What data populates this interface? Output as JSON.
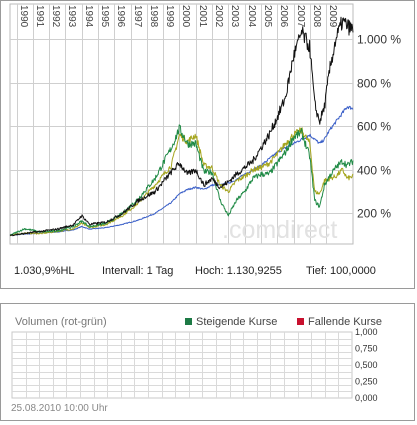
{
  "chart_data": [
    {
      "type": "line",
      "title": "",
      "x_ticks": [
        "1990",
        "1991",
        "1992",
        "1993",
        "1994",
        "1995",
        "1996",
        "1997",
        "1998",
        "1999",
        "2000",
        "2001",
        "2002",
        "2003",
        "2004",
        "2005",
        "2006",
        "2007",
        "2008",
        "2009"
      ],
      "y_ticks": [
        200,
        400,
        600,
        800,
        1000
      ],
      "y_tick_labels": [
        "200 %",
        "400 %",
        "600 %",
        "800 %",
        "1.000 %"
      ],
      "ylim": [
        60,
        1160
      ],
      "xlim": [
        1989.6,
        2010.65
      ],
      "grid": true,
      "watermark": ".comdirect",
      "series_colors": [
        "#111111",
        "#3a5fc8",
        "#a5a51e",
        "#1f8a45"
      ],
      "series": [
        {
          "x": [
            1989.6,
            1990.5,
            1991.5,
            1992.5,
            1993.5,
            1994,
            1994.5,
            1995.5,
            1996.5,
            1997.5,
            1998.5,
            1999.5,
            2000,
            2000.5,
            2001,
            2001.5,
            2002,
            2002.5,
            2003,
            2003.5,
            2004,
            2004.5,
            2005,
            2005.5,
            2006,
            2006.5,
            2007,
            2007.5,
            2008,
            2008.3,
            2008.6,
            2008.9,
            2009.2,
            2009.6,
            2010,
            2010.3,
            2010.65
          ],
          "y": [
            100,
            108,
            118,
            128,
            148,
            190,
            150,
            160,
            200,
            260,
            300,
            390,
            430,
            380,
            400,
            330,
            360,
            320,
            345,
            380,
            410,
            440,
            500,
            560,
            640,
            730,
            920,
            1030,
            960,
            700,
            620,
            690,
            850,
            1000,
            1080,
            1060,
            1040
          ]
        },
        {
          "x": [
            1989.6,
            1990.5,
            1991.5,
            1992.5,
            1993.5,
            1994,
            1994.5,
            1995.5,
            1996.5,
            1997.5,
            1998.5,
            1999.5,
            2000,
            2000.5,
            2001,
            2001.5,
            2002,
            2002.5,
            2003,
            2003.5,
            2004,
            2004.5,
            2005,
            2005.5,
            2006,
            2006.5,
            2007,
            2007.5,
            2008,
            2008.3,
            2008.6,
            2008.9,
            2009.2,
            2009.6,
            2010,
            2010.3,
            2010.65
          ],
          "y": [
            100,
            105,
            110,
            115,
            125,
            140,
            128,
            135,
            150,
            170,
            200,
            250,
            290,
            310,
            320,
            310,
            330,
            330,
            340,
            355,
            380,
            400,
            420,
            450,
            480,
            500,
            520,
            540,
            560,
            540,
            520,
            540,
            580,
            620,
            660,
            690,
            680
          ]
        },
        {
          "x": [
            1989.6,
            1990.5,
            1991.5,
            1992.5,
            1993.5,
            1994,
            1994.5,
            1995.5,
            1996.5,
            1997.5,
            1998.5,
            1999.5,
            2000,
            2000.5,
            2001,
            2001.5,
            2002,
            2002.5,
            2003,
            2003.5,
            2004,
            2004.5,
            2005,
            2005.5,
            2006,
            2006.5,
            2007,
            2007.5,
            2008,
            2008.3,
            2008.6,
            2008.9,
            2009.2,
            2009.6,
            2010,
            2010.3,
            2010.65
          ],
          "y": [
            100,
            110,
            108,
            118,
            130,
            155,
            135,
            150,
            190,
            250,
            330,
            420,
            560,
            530,
            560,
            420,
            410,
            330,
            300,
            350,
            370,
            400,
            410,
            430,
            470,
            520,
            560,
            580,
            520,
            300,
            290,
            350,
            360,
            370,
            400,
            360,
            370
          ]
        },
        {
          "x": [
            1989.6,
            1990.5,
            1991.5,
            1992.5,
            1993.5,
            1994,
            1994.5,
            1995.5,
            1996.5,
            1997.5,
            1998.5,
            1999.5,
            2000,
            2000.5,
            2001,
            2001.5,
            2002,
            2002.5,
            2003,
            2003.5,
            2004,
            2004.5,
            2005,
            2005.5,
            2006,
            2006.5,
            2007,
            2007.5,
            2008,
            2008.3,
            2008.6,
            2008.9,
            2009.2,
            2009.6,
            2010,
            2010.3,
            2010.65
          ],
          "y": [
            100,
            130,
            115,
            120,
            140,
            165,
            140,
            155,
            200,
            270,
            360,
            500,
            590,
            520,
            520,
            390,
            390,
            260,
            190,
            260,
            300,
            360,
            380,
            380,
            430,
            480,
            550,
            570,
            460,
            260,
            230,
            330,
            370,
            410,
            440,
            420,
            440
          ]
        }
      ]
    },
    {
      "type": "bar",
      "title": "Volumen (rot-grün)",
      "legend": [
        {
          "label": "Steigende Kurse",
          "color": "#1d7a45"
        },
        {
          "label": "Fallende Kurse",
          "color": "#c8102e"
        }
      ],
      "legend_position": "top-right",
      "y_ticks": [
        0,
        0.25,
        0.5,
        0.75,
        1
      ],
      "y_tick_labels": [
        "0,000",
        "0,250",
        "0,500",
        "0,750",
        "1,000"
      ],
      "ylim": [
        0,
        1
      ],
      "grid": true,
      "values": []
    }
  ],
  "info": {
    "hl": "1.030,9%HL",
    "intervall": "Intervall: 1 Tag",
    "hoch": "Hoch: 1.130,9255",
    "tief": "Tief: 100,0000"
  },
  "timestamp": "25.08.2010 10:00 Uhr"
}
